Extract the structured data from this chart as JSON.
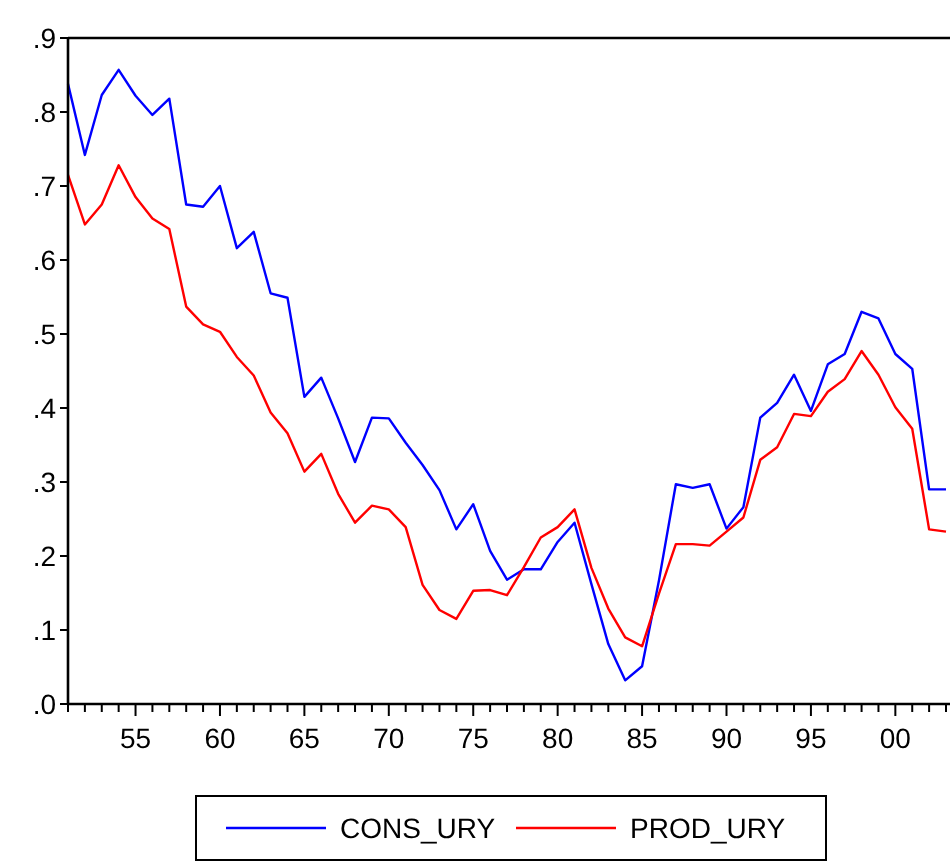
{
  "chart_data": {
    "type": "line",
    "x": [
      1951,
      1952,
      1953,
      1954,
      1955,
      1956,
      1957,
      1958,
      1959,
      1960,
      1961,
      1962,
      1963,
      1964,
      1965,
      1966,
      1967,
      1968,
      1969,
      1970,
      1971,
      1972,
      1973,
      1974,
      1975,
      1976,
      1977,
      1978,
      1979,
      1980,
      1981,
      1982,
      1983,
      1984,
      1985,
      1986,
      1987,
      1988,
      1989,
      1990,
      1991,
      1992,
      1993,
      1994,
      1995,
      1996,
      1997,
      1998,
      1999,
      2000,
      2001,
      2002,
      2003
    ],
    "series": [
      {
        "name": "CONS_URY",
        "color": "#0000ff",
        "values": [
          0.838,
          0.742,
          0.823,
          0.857,
          0.822,
          0.796,
          0.818,
          0.675,
          0.672,
          0.7,
          0.616,
          0.638,
          0.555,
          0.549,
          0.415,
          0.441,
          0.386,
          0.327,
          0.387,
          0.386,
          0.353,
          0.323,
          0.289,
          0.236,
          0.27,
          0.207,
          0.168,
          0.182,
          0.182,
          0.219,
          0.245,
          0.162,
          0.081,
          0.032,
          0.051,
          0.167,
          0.297,
          0.292,
          0.297,
          0.237,
          0.266,
          0.387,
          0.407,
          0.445,
          0.396,
          0.459,
          0.473,
          0.53,
          0.521,
          0.473,
          0.453,
          0.29,
          0.29
        ]
      },
      {
        "name": "PROD_URY",
        "color": "#ff0000",
        "values": [
          0.715,
          0.648,
          0.675,
          0.728,
          0.685,
          0.656,
          0.642,
          0.537,
          0.513,
          0.503,
          0.469,
          0.444,
          0.394,
          0.366,
          0.314,
          0.338,
          0.284,
          0.245,
          0.268,
          0.263,
          0.239,
          0.161,
          0.127,
          0.115,
          0.153,
          0.154,
          0.147,
          0.185,
          0.225,
          0.239,
          0.263,
          0.184,
          0.129,
          0.09,
          0.078,
          0.149,
          0.216,
          0.216,
          0.214,
          0.233,
          0.252,
          0.33,
          0.347,
          0.392,
          0.389,
          0.422,
          0.439,
          0.477,
          0.445,
          0.401,
          0.372,
          0.236,
          0.233
        ]
      }
    ],
    "xlim": [
      1951,
      2003
    ],
    "xticks": [
      {
        "value": 1951,
        "label": null
      },
      {
        "value": 1952,
        "label": null
      },
      {
        "value": 1953,
        "label": null
      },
      {
        "value": 1954,
        "label": null
      },
      {
        "value": 1955,
        "label": "55"
      },
      {
        "value": 1956,
        "label": null
      },
      {
        "value": 1957,
        "label": null
      },
      {
        "value": 1958,
        "label": null
      },
      {
        "value": 1959,
        "label": null
      },
      {
        "value": 1960,
        "label": "60"
      },
      {
        "value": 1961,
        "label": null
      },
      {
        "value": 1962,
        "label": null
      },
      {
        "value": 1963,
        "label": null
      },
      {
        "value": 1964,
        "label": null
      },
      {
        "value": 1965,
        "label": "65"
      },
      {
        "value": 1966,
        "label": null
      },
      {
        "value": 1967,
        "label": null
      },
      {
        "value": 1968,
        "label": null
      },
      {
        "value": 1969,
        "label": null
      },
      {
        "value": 1970,
        "label": "70"
      },
      {
        "value": 1971,
        "label": null
      },
      {
        "value": 1972,
        "label": null
      },
      {
        "value": 1973,
        "label": null
      },
      {
        "value": 1974,
        "label": null
      },
      {
        "value": 1975,
        "label": "75"
      },
      {
        "value": 1976,
        "label": null
      },
      {
        "value": 1977,
        "label": null
      },
      {
        "value": 1978,
        "label": null
      },
      {
        "value": 1979,
        "label": null
      },
      {
        "value": 1980,
        "label": "80"
      },
      {
        "value": 1981,
        "label": null
      },
      {
        "value": 1982,
        "label": null
      },
      {
        "value": 1983,
        "label": null
      },
      {
        "value": 1984,
        "label": null
      },
      {
        "value": 1985,
        "label": "85"
      },
      {
        "value": 1986,
        "label": null
      },
      {
        "value": 1987,
        "label": null
      },
      {
        "value": 1988,
        "label": null
      },
      {
        "value": 1989,
        "label": null
      },
      {
        "value": 1990,
        "label": "90"
      },
      {
        "value": 1991,
        "label": null
      },
      {
        "value": 1992,
        "label": null
      },
      {
        "value": 1993,
        "label": null
      },
      {
        "value": 1994,
        "label": null
      },
      {
        "value": 1995,
        "label": "95"
      },
      {
        "value": 1996,
        "label": null
      },
      {
        "value": 1997,
        "label": null
      },
      {
        "value": 1998,
        "label": null
      },
      {
        "value": 1999,
        "label": null
      },
      {
        "value": 2000,
        "label": "00"
      },
      {
        "value": 2001,
        "label": null
      },
      {
        "value": 2002,
        "label": null
      },
      {
        "value": 2003,
        "label": null
      }
    ],
    "ylim": [
      0,
      0.9
    ],
    "yticks": [
      {
        "value": 0,
        "label": ".0"
      },
      {
        "value": 0.1,
        "label": ".1"
      },
      {
        "value": 0.2,
        "label": ".2"
      },
      {
        "value": 0.3,
        "label": ".3"
      },
      {
        "value": 0.4,
        "label": ".4"
      },
      {
        "value": 0.5,
        "label": ".5"
      },
      {
        "value": 0.6,
        "label": ".6"
      },
      {
        "value": 0.7,
        "label": ".7"
      },
      {
        "value": 0.8,
        "label": ".8"
      },
      {
        "value": 0.9,
        "label": ".9"
      }
    ],
    "grid": false,
    "legend": "bottom",
    "marker": "none",
    "line_style": "solid"
  }
}
